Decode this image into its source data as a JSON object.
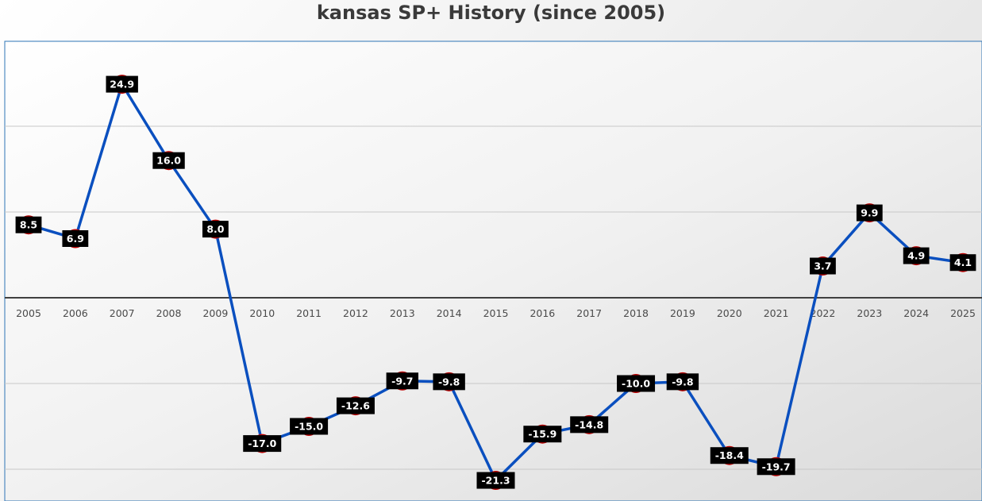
{
  "chart_data": {
    "type": "line",
    "title": "kansas SP+ History (since 2005)",
    "xlabel": "",
    "ylabel": "",
    "categories": [
      "2005",
      "2006",
      "2007",
      "2008",
      "2009",
      "2010",
      "2011",
      "2012",
      "2013",
      "2014",
      "2015",
      "2016",
      "2017",
      "2018",
      "2019",
      "2020",
      "2021",
      "2022",
      "2023",
      "2024",
      "2025"
    ],
    "series": [
      {
        "values": [
          8.5,
          6.9,
          24.9,
          16.0,
          8.0,
          -17.0,
          -15.0,
          -12.6,
          -9.7,
          -9.8,
          -21.3,
          -15.9,
          -14.8,
          -10.0,
          -9.8,
          -18.4,
          -19.7,
          3.7,
          9.9,
          4.9,
          4.1
        ],
        "labels": [
          "8.5",
          "6.9",
          "24.9",
          "16.0",
          "8.0",
          "-17.0",
          "-15.0",
          "-12.6",
          "-9.7",
          "-9.8",
          "-21.3",
          "-15.9",
          "-14.8",
          "-10.0",
          "-9.8",
          "-18.4",
          "-19.7",
          "3.7",
          "9.9",
          "4.9",
          "4.1"
        ],
        "color": "#0a4fbf",
        "marker_color": "#c00000"
      }
    ],
    "ylim": [
      -24,
      30
    ],
    "gridlines": [
      -20,
      -10,
      10,
      20
    ],
    "grid": true,
    "legend": "none",
    "y_tick_labels": false,
    "colors": {
      "line": "#0a4fbf",
      "marker": "#c00000",
      "label_bg": "#000000",
      "label_text": "#ffffff",
      "axis": "#404040",
      "grid": "#c8c8c8",
      "border": "#2e75b6"
    }
  }
}
